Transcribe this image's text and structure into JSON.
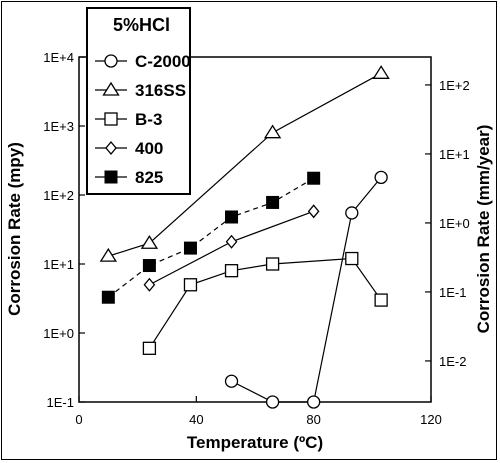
{
  "chart_data": {
    "type": "scatter",
    "legend_title": "5%HCl",
    "xlabel": "Temperature (ºC)",
    "ylabel": "Corrosion Rate (mpy)",
    "y2label": "Corrosion Rate (mm/year)",
    "xlim": [
      0,
      120
    ],
    "ylim": [
      0.1,
      10000
    ],
    "yscale": "log",
    "xticks": [
      "0",
      "40",
      "80",
      "120"
    ],
    "yticks": [
      "1E-1",
      "1E+0",
      "1E+1",
      "1E+2",
      "1E+3",
      "1E+4"
    ],
    "y2ticks": [
      "1E-2",
      "1E-1",
      "1E+0",
      "1E+1",
      "1E+2"
    ],
    "grid": false,
    "legend_position": "top-left",
    "series": [
      {
        "name": "C-2000",
        "marker": "circle-open",
        "line": "solid",
        "color": "#d42a2a",
        "points": [
          [
            52,
            0.2
          ],
          [
            66,
            0.1
          ],
          [
            80,
            0.1
          ],
          [
            93,
            55
          ],
          [
            103,
            180
          ]
        ]
      },
      {
        "name": "316SS",
        "marker": "triangle-open",
        "line": "solid",
        "color": "#000000",
        "points": [
          [
            10,
            13
          ],
          [
            24,
            20
          ],
          [
            66,
            800
          ],
          [
            103,
            5800
          ]
        ]
      },
      {
        "name": "B-3",
        "marker": "square-open",
        "line": "solid",
        "color": "#000000",
        "points": [
          [
            24,
            0.6
          ],
          [
            38,
            5
          ],
          [
            52,
            8
          ],
          [
            66,
            10
          ],
          [
            93,
            12
          ],
          [
            103,
            3
          ]
        ]
      },
      {
        "name": "400",
        "marker": "diamond-open",
        "line": "solid",
        "color": "#000000",
        "points": [
          [
            24,
            5
          ],
          [
            52,
            21
          ],
          [
            80,
            58
          ]
        ]
      },
      {
        "name": "825",
        "marker": "square-filled",
        "line": "dashed",
        "color": "#000000",
        "points": [
          [
            10,
            3.3
          ],
          [
            24,
            9.5
          ],
          [
            38,
            17
          ],
          [
            52,
            48
          ],
          [
            66,
            78
          ],
          [
            80,
            175
          ]
        ]
      }
    ]
  }
}
